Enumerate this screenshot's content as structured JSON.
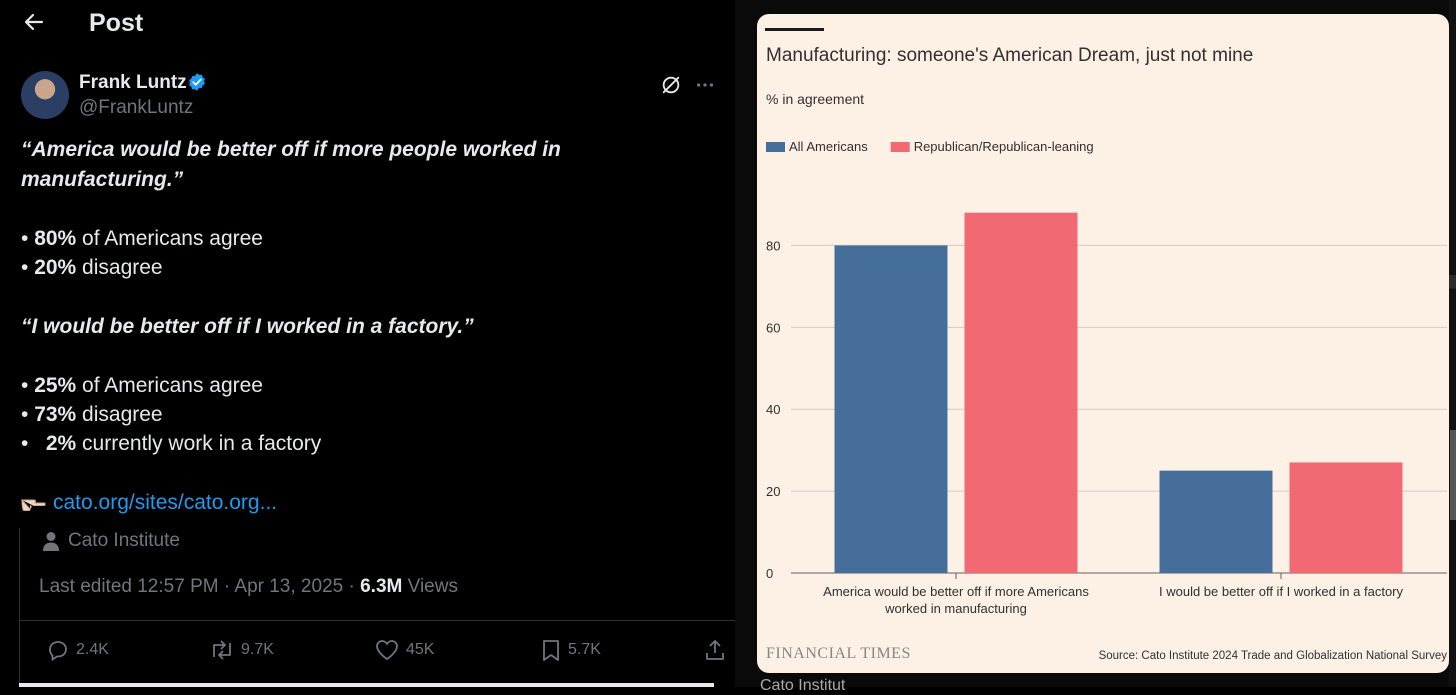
{
  "header": {
    "title": "Post"
  },
  "author": {
    "name": "Frank Luntz",
    "handle": "@FrankLuntz"
  },
  "tweet": {
    "quote1": "“America would be better off if more people worked in",
    "quote1b": "manufacturing.”",
    "b1_val": "80%",
    "b1_text": " of Americans agree",
    "b2_val": "20%",
    "b2_text": " disagree",
    "quote2": "“I would be better off if I worked in a factory.”",
    "b3_val": "25%",
    "b3_text": " of Americans agree",
    "b4_val": "73%",
    "b4_text": " disagree",
    "b5_val": "2%",
    "b5_text": " currently work in a factory",
    "link": "cato.org/sites/cato.org..."
  },
  "card": {
    "source": "Cato Institute"
  },
  "meta": {
    "edited": "Last edited 12:57 PM · Apr 13, 2025 · ",
    "views_num": "6.3M",
    "views_label": " Views"
  },
  "actions": {
    "replies": "2.4K",
    "reposts": "9.7K",
    "likes": "45K",
    "bookmarks": "5.7K"
  },
  "peek_text": "Cato Institut",
  "chart_data": {
    "type": "bar",
    "title": "Manufacturing: someone's American Dream, just not mine",
    "subtitle": "% in agreement",
    "categories": [
      "America would be better off if more Americans worked in manufacturing",
      "I would be better off if I worked in a factory"
    ],
    "category_lines": [
      [
        "America would be better off if more Americans",
        "worked in manufacturing"
      ],
      [
        "I would be better off if I worked in a factory"
      ]
    ],
    "series": [
      {
        "name": "All Americans",
        "values": [
          80,
          25
        ],
        "color": "#466e9a"
      },
      {
        "name": "Republican/Republican-leaning",
        "values": [
          88,
          27
        ],
        "color": "#f16a73"
      }
    ],
    "yticks": [
      0,
      20,
      40,
      60,
      80
    ],
    "ylim": [
      0,
      95
    ],
    "grid": true,
    "legend": "top-left",
    "brand": "FINANCIAL TIMES",
    "source": "Source: Cato Institute 2024 Trade and Globalization National Survey"
  }
}
